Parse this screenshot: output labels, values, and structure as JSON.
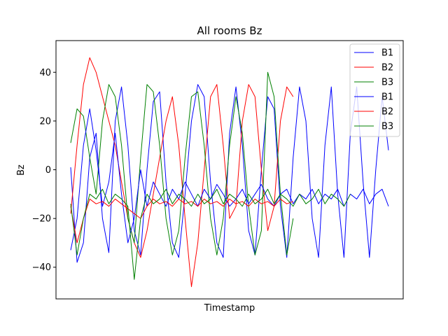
{
  "chart_data": {
    "type": "line",
    "title": "All rooms Bz",
    "xlabel": "Timestamp",
    "ylabel": "Bz",
    "ylim": [
      -53,
      53
    ],
    "xlim": [
      0,
      100
    ],
    "yticks": [
      40,
      20,
      0,
      -20,
      -40
    ],
    "ytick_labels": [
      "40",
      "20",
      "0",
      "−20",
      "−40"
    ],
    "grid": false,
    "legend_position": "top-right",
    "series": [
      {
        "name": "B1",
        "color": "#0000ff",
        "x": [
          0,
          2,
          4,
          6,
          8,
          10,
          12,
          14,
          16,
          18,
          20,
          22,
          24,
          26,
          28,
          30,
          32,
          34,
          36,
          38,
          40,
          42,
          44,
          46,
          48,
          50,
          52,
          54,
          56,
          58,
          60,
          62,
          64,
          66,
          68,
          70,
          72,
          74,
          76,
          78,
          80,
          82,
          84,
          86,
          88,
          90,
          92,
          94,
          96,
          98,
          100
        ],
        "values": [
          1,
          -38,
          -30,
          5,
          15,
          -20,
          -34,
          20,
          34,
          10,
          -25,
          -35,
          0,
          28,
          32,
          -5,
          -30,
          -36,
          -10,
          20,
          35,
          30,
          -5,
          -30,
          -36,
          15,
          34,
          10,
          -25,
          -35,
          0,
          30,
          25,
          -15,
          -36,
          5,
          34,
          20,
          -20,
          -36,
          10,
          34,
          -10,
          -36,
          15,
          34,
          -5,
          -36,
          0,
          30,
          8
        ]
      },
      {
        "name": "B2",
        "color": "#ff0000",
        "x": [
          0,
          2,
          4,
          6,
          8,
          10,
          12,
          14,
          16,
          18,
          20,
          22,
          24,
          26,
          28,
          30,
          32,
          34,
          36,
          38,
          40,
          42,
          44,
          46,
          48,
          50,
          52,
          54,
          56,
          58,
          60,
          62,
          64,
          66,
          68,
          70
        ],
        "values": [
          -18,
          10,
          35,
          46,
          40,
          30,
          20,
          10,
          -5,
          -20,
          -30,
          -36,
          -25,
          -10,
          5,
          20,
          30,
          10,
          -20,
          -48,
          -30,
          0,
          30,
          35,
          10,
          -20,
          -15,
          20,
          35,
          30,
          0,
          -25,
          -15,
          20,
          34,
          30
        ]
      },
      {
        "name": "B3",
        "color": "#008000",
        "x": [
          0,
          2,
          4,
          6,
          8,
          10,
          12,
          14,
          16,
          18,
          20,
          22,
          24,
          26,
          28,
          30,
          32,
          34,
          36,
          38,
          40,
          42,
          44,
          46,
          48,
          50,
          52,
          54,
          56,
          58,
          60,
          62,
          64,
          66,
          68,
          70
        ],
        "values": [
          11,
          25,
          22,
          5,
          -10,
          20,
          35,
          30,
          10,
          -20,
          -30,
          5,
          35,
          32,
          10,
          -20,
          -35,
          -25,
          5,
          30,
          32,
          10,
          -20,
          -35,
          -20,
          10,
          30,
          15,
          -15,
          -35,
          -25,
          40,
          30,
          -10,
          -35,
          -20
        ]
      },
      {
        "name": "B1",
        "color": "#0000ff",
        "x": [
          0,
          2,
          4,
          6,
          8,
          10,
          12,
          14,
          16,
          18,
          20,
          22,
          24,
          26,
          28,
          30,
          32,
          34,
          36,
          38,
          40,
          42,
          44,
          46,
          48,
          50,
          52,
          54,
          56,
          58,
          60,
          62,
          64,
          66,
          68,
          70,
          72,
          74,
          76,
          78,
          80,
          82,
          84,
          86,
          88,
          90,
          92,
          94,
          96,
          98,
          100
        ],
        "values": [
          -33,
          -20,
          10,
          25,
          8,
          -15,
          -5,
          15,
          -10,
          -30,
          -20,
          0,
          -15,
          -5,
          -10,
          -15,
          -8,
          -12,
          -5,
          -10,
          -15,
          -8,
          -12,
          -6,
          -10,
          -15,
          -12,
          -8,
          -14,
          -10,
          -6,
          -12,
          -15,
          -10,
          -8,
          -14,
          -10,
          -12,
          -8,
          -14,
          -10,
          -12,
          -8,
          -15,
          -10,
          -12,
          -8,
          -14,
          -10,
          -8,
          -15
        ]
      },
      {
        "name": "B2",
        "color": "#ff0000",
        "x": [
          0,
          2,
          4,
          6,
          8,
          10,
          12,
          14,
          16,
          18,
          20,
          22,
          24,
          26,
          28,
          30,
          32,
          34,
          36,
          38,
          40,
          42,
          44,
          46,
          48,
          50,
          52,
          54,
          56,
          58,
          60,
          62,
          64,
          66,
          68,
          70
        ],
        "values": [
          -15,
          -30,
          -20,
          -12,
          -14,
          -13,
          -15,
          -12,
          -14,
          -16,
          -18,
          -20,
          -15,
          -12,
          -14,
          -13,
          -15,
          -12,
          -14,
          -13,
          -15,
          -12,
          -14,
          -13,
          -15,
          -12,
          -14,
          -13,
          -15,
          -12,
          -14,
          -13,
          -15,
          -12,
          -14,
          -13
        ]
      },
      {
        "name": "B3",
        "color": "#008000",
        "x": [
          0,
          2,
          4,
          6,
          8,
          10,
          12,
          14,
          16,
          18,
          20,
          22,
          24,
          26,
          28,
          30,
          32,
          34,
          36,
          38,
          40,
          42,
          44,
          46,
          48,
          50,
          52,
          54,
          56,
          58,
          60,
          62,
          64,
          66,
          68,
          70,
          72,
          74,
          76,
          78,
          80,
          82,
          84,
          86,
          88
        ],
        "values": [
          -14,
          -35,
          -20,
          -10,
          -12,
          -8,
          -14,
          -10,
          -12,
          -15,
          -45,
          -20,
          -10,
          -14,
          -12,
          -8,
          -14,
          -10,
          -12,
          -15,
          -10,
          -14,
          -12,
          -8,
          -14,
          -10,
          -12,
          -15,
          -10,
          -14,
          -12,
          -8,
          -14,
          -10,
          -12,
          -15,
          -10,
          -14,
          -12,
          -8,
          -14,
          -10,
          -12,
          -15,
          -10
        ]
      }
    ]
  }
}
